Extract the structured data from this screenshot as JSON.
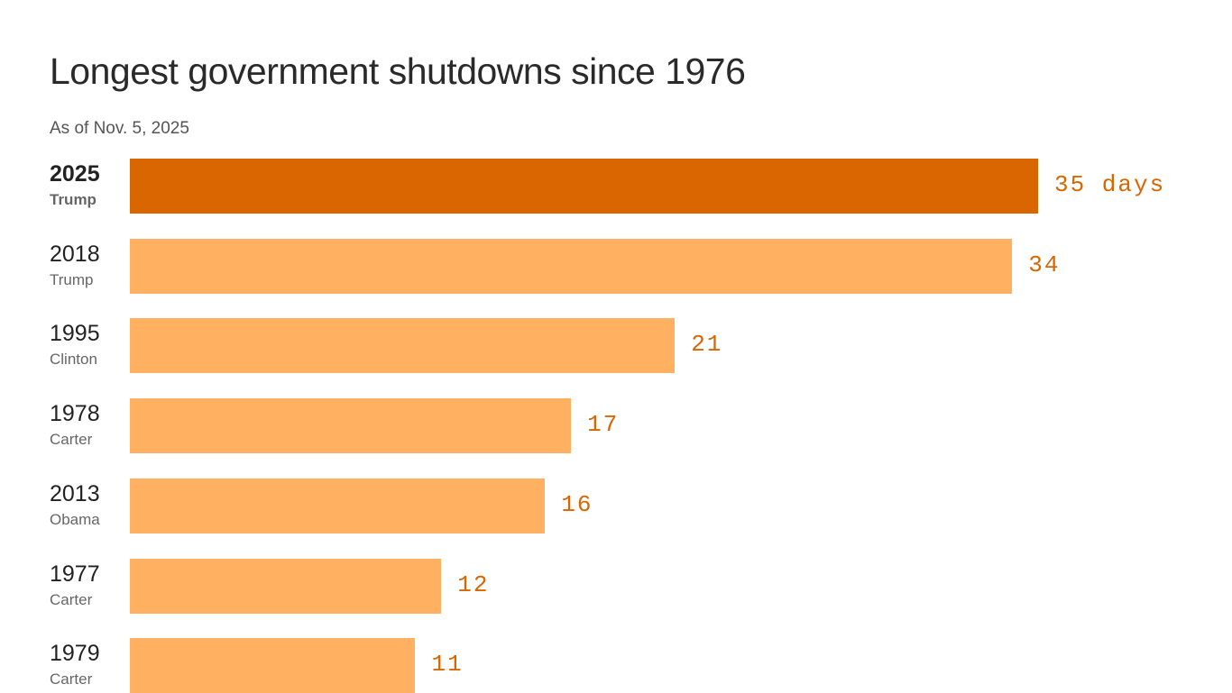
{
  "chart_data": {
    "type": "bar",
    "orientation": "horizontal",
    "title": "Longest government shutdowns since 1976",
    "subtitle": "As of Nov. 5, 2025",
    "categories": [
      "2025",
      "2018",
      "1995",
      "1978",
      "2013",
      "1977",
      "1979"
    ],
    "presidents": [
      "Trump",
      "Trump",
      "Clinton",
      "Carter",
      "Obama",
      "Carter",
      "Carter"
    ],
    "values": [
      35,
      34,
      21,
      17,
      16,
      12,
      11
    ],
    "value_labels": [
      "35 days",
      "34",
      "21",
      "17",
      "16",
      "12",
      "11"
    ],
    "unit": "days",
    "xlim": [
      0,
      35
    ],
    "grid": false,
    "colors": {
      "highlight": "#D96600",
      "default": "#FFB061",
      "label": "#D96600"
    },
    "highlight_index": 0
  }
}
